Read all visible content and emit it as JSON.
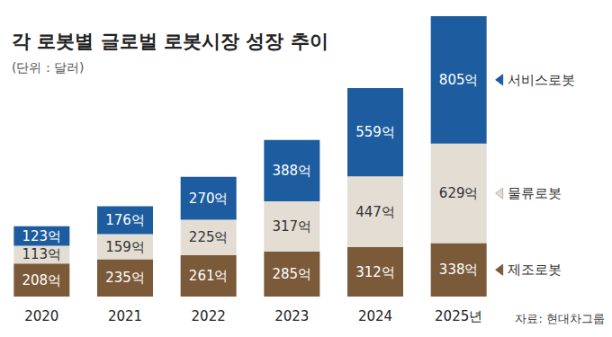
{
  "chart_data": {
    "type": "bar",
    "title": "각 로봇별 글로벌 로봇시장 성장 추이",
    "subtitle": "(단위 : 달러)",
    "annotations": [
      "자료: 현대차그룹"
    ],
    "categories": [
      "2020",
      "2021",
      "2022",
      "2023",
      "2024",
      "2025년"
    ],
    "stacked": true,
    "data_labels": true,
    "tick_labels": "x",
    "grid": false,
    "ylim": [
      0,
      1800
    ],
    "series": [
      {
        "name": "제조로봇",
        "color": "#7b5a3a",
        "values": [
          208,
          235,
          261,
          285,
          312,
          338
        ],
        "value_labels": [
          "208억",
          "235억",
          "261억",
          "285억",
          "312억",
          "338억"
        ]
      },
      {
        "name": "물류로봇",
        "color": "#e3ddd3",
        "values": [
          113,
          159,
          225,
          317,
          447,
          629
        ],
        "value_labels": [
          "113억",
          "159억",
          "225억",
          "317억",
          "447억",
          "629억"
        ]
      },
      {
        "name": "서비스로봇",
        "color": "#1d5d9f",
        "values": [
          123,
          176,
          270,
          388,
          559,
          805
        ],
        "value_labels": [
          "123억",
          "176억",
          "270억",
          "388억",
          "559억",
          "805억"
        ]
      }
    ]
  }
}
